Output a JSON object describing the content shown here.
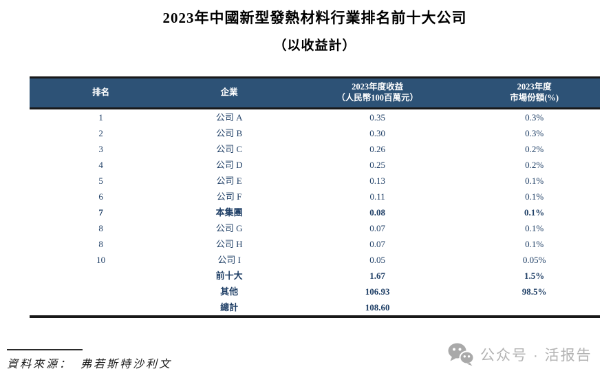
{
  "title": {
    "line1": "2023年中國新型發熱材料行業排名前十大公司",
    "line2": "（以收益計）"
  },
  "table": {
    "headers": [
      "排名",
      "企業",
      "2023年度收益\n（人民幣100百萬元）",
      "2023年度\n市場份額(%)"
    ],
    "rows": [
      {
        "rank": "1",
        "company": "公司 A",
        "revenue": "0.35",
        "share": "0.3%",
        "bold": false
      },
      {
        "rank": "2",
        "company": "公司 B",
        "revenue": "0.30",
        "share": "0.3%",
        "bold": false
      },
      {
        "rank": "3",
        "company": "公司 C",
        "revenue": "0.26",
        "share": "0.2%",
        "bold": false
      },
      {
        "rank": "4",
        "company": "公司 D",
        "revenue": "0.25",
        "share": "0.2%",
        "bold": false
      },
      {
        "rank": "5",
        "company": "公司 E",
        "revenue": "0.13",
        "share": "0.1%",
        "bold": false
      },
      {
        "rank": "6",
        "company": "公司 F",
        "revenue": "0.11",
        "share": "0.1%",
        "bold": false
      },
      {
        "rank": "7",
        "company": "本集團",
        "revenue": "0.08",
        "share": "0.1%",
        "bold": true
      },
      {
        "rank": "8",
        "company": "公司 G",
        "revenue": "0.07",
        "share": "0.1%",
        "bold": false
      },
      {
        "rank": "8",
        "company": "公司 H",
        "revenue": "0.07",
        "share": "0.1%",
        "bold": false
      },
      {
        "rank": "10",
        "company": "公司 I",
        "revenue": "0.05",
        "share": "0.05%",
        "bold": false
      },
      {
        "rank": "",
        "company": "前十大",
        "revenue": "1.67",
        "share": "1.5%",
        "bold": true
      },
      {
        "rank": "",
        "company": "其他",
        "revenue": "106.93",
        "share": "98.5%",
        "bold": true
      },
      {
        "rank": "",
        "company": "總計",
        "revenue": "108.60",
        "share": "",
        "bold": true
      }
    ]
  },
  "footer": {
    "source_label": "資料來源：",
    "source_value": "弗若斯特沙利文"
  },
  "watermark": {
    "icon": "wechat-icon",
    "text": "公众号 · 活报告"
  },
  "colors": {
    "header_bg": "#2d5276",
    "header_text": "#ffffff",
    "body_text": "#1f3f66",
    "border": "#191919",
    "watermark_gray": "#b3b3b3",
    "icon_gray": "#a9a9a9"
  }
}
